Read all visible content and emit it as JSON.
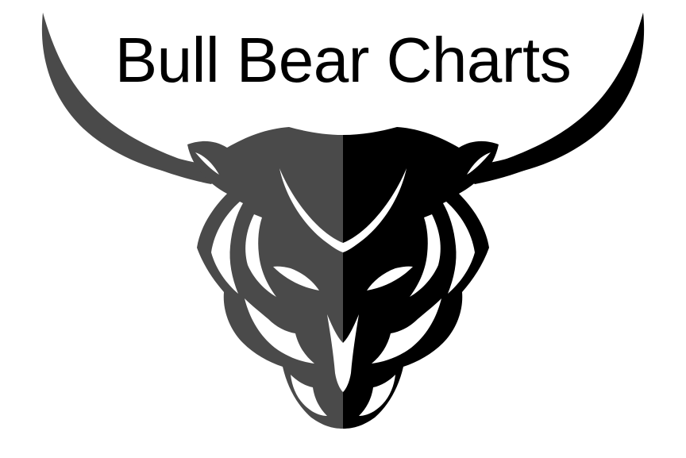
{
  "logo": {
    "title": "Bull Bear Charts",
    "icon": "bull-head-icon",
    "colors": {
      "left_half": "#4a4a4a",
      "right_half": "#000000",
      "background": "#ffffff",
      "cutout": "#ffffff"
    }
  }
}
